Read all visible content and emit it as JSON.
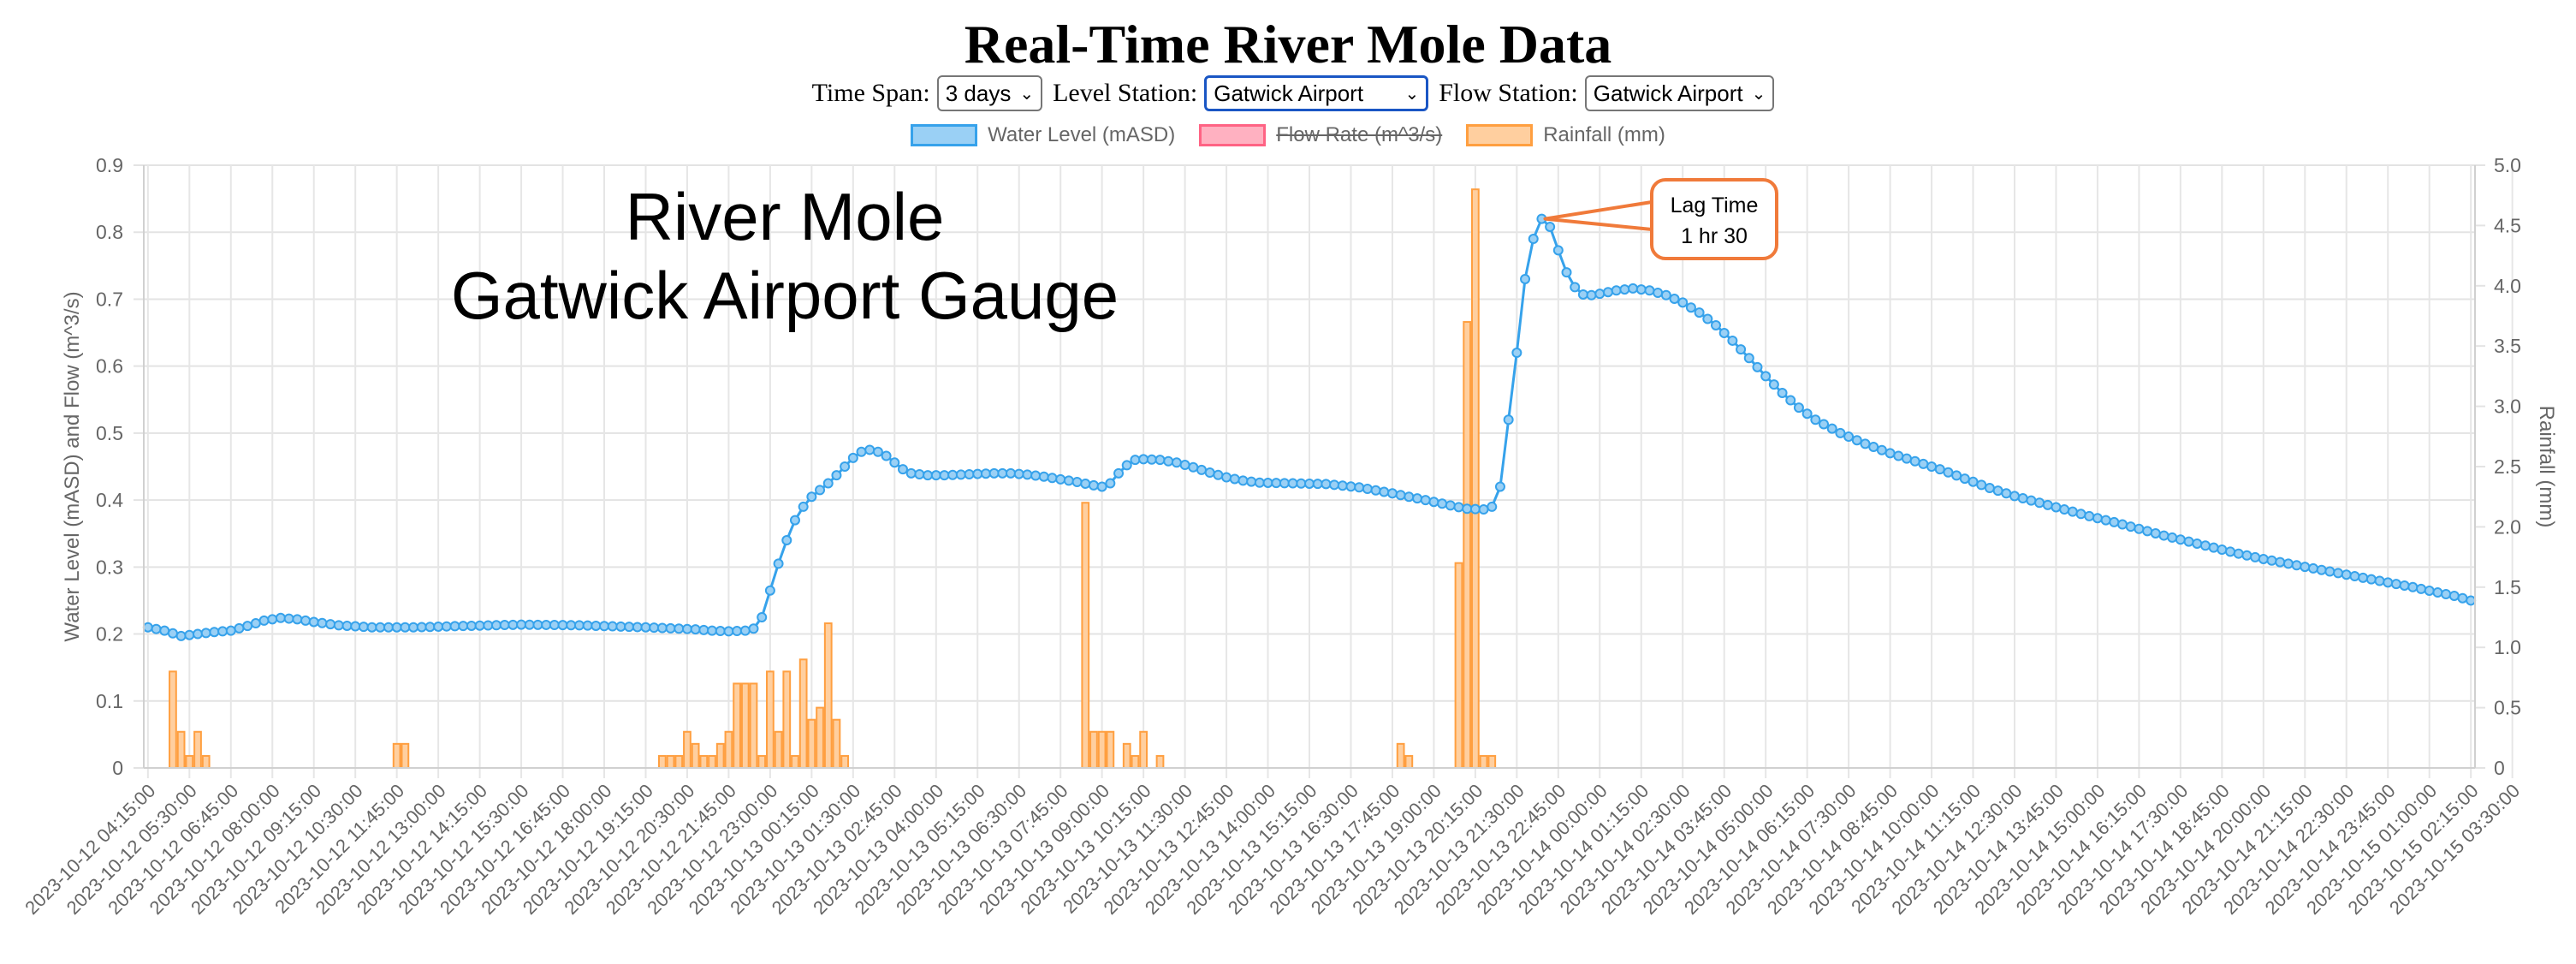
{
  "title": "Real-Time River Mole Data",
  "controls": {
    "time_span_label": "Time Span:",
    "time_span_value": "3 days",
    "level_station_label": "Level Station:",
    "level_station_value": "Gatwick Airport",
    "flow_station_label": "Flow Station:",
    "flow_station_value": "Gatwick Airport"
  },
  "colors": {
    "water_level": "#36a2eb",
    "water_level_fill": "#9ad0f5",
    "flow_rate": "#ff6384",
    "flow_rate_fill": "#ffb1c1",
    "rainfall": "#ff9f40",
    "rainfall_fill": "#ffcf9f",
    "callout": "#f07a3a"
  },
  "legend": [
    {
      "name": "Water Level (mASD)",
      "series": "water_level",
      "hidden": false
    },
    {
      "name": "Flow Rate (m^3/s)",
      "series": "flow_rate",
      "hidden": true
    },
    {
      "name": "Rainfall (mm)",
      "series": "rainfall",
      "hidden": false
    }
  ],
  "annotations": {
    "overlay_line1": "River Mole",
    "overlay_line2": "Gatwick Airport Gauge",
    "callout_line1": "Lag Time",
    "callout_line2": "1 hr 30"
  },
  "chart_data": {
    "type": "line+bar",
    "interval_minutes": 15,
    "start": "2023-10-12 04:15:00",
    "points": 281,
    "ylabel_left": "Water Level (mASD) and Flow (m^3/s)",
    "ylabel_right": "Rainfall (mm)",
    "ylim_left": [
      0,
      0.9
    ],
    "ylim_right": [
      0,
      5
    ],
    "yticks_left": [
      "0",
      "0.1",
      "0.2",
      "0.3",
      "0.4",
      "0.5",
      "0.6",
      "0.7",
      "0.8",
      "0.9"
    ],
    "yticks_right": [
      "0",
      "0.5",
      "1.0",
      "1.5",
      "2.0",
      "2.5",
      "3.0",
      "3.5",
      "4.0",
      "4.5",
      "5.0"
    ],
    "xtick_every": 5,
    "xticks": [
      "2023-10-12 04:15:00",
      "2023-10-12 05:30:00",
      "2023-10-12 06:45:00",
      "2023-10-12 08:00:00",
      "2023-10-12 09:15:00",
      "2023-10-12 10:30:00",
      "2023-10-12 11:45:00",
      "2023-10-12 13:00:00",
      "2023-10-12 14:15:00",
      "2023-10-12 15:30:00",
      "2023-10-12 16:45:00",
      "2023-10-12 18:00:00",
      "2023-10-12 19:15:00",
      "2023-10-12 20:30:00",
      "2023-10-12 21:45:00",
      "2023-10-12 23:00:00",
      "2023-10-13 00:15:00",
      "2023-10-13 01:30:00",
      "2023-10-13 02:45:00",
      "2023-10-13 04:00:00",
      "2023-10-13 05:15:00",
      "2023-10-13 06:30:00",
      "2023-10-13 07:45:00",
      "2023-10-13 09:00:00",
      "2023-10-13 10:15:00",
      "2023-10-13 11:30:00",
      "2023-10-13 12:45:00",
      "2023-10-13 14:00:00",
      "2023-10-13 15:15:00",
      "2023-10-13 16:30:00",
      "2023-10-13 17:45:00",
      "2023-10-13 19:00:00",
      "2023-10-13 20:15:00",
      "2023-10-13 21:30:00",
      "2023-10-13 22:45:00",
      "2023-10-14 00:00:00",
      "2023-10-14 01:15:00",
      "2023-10-14 02:30:00",
      "2023-10-14 03:45:00",
      "2023-10-14 05:00:00",
      "2023-10-14 06:15:00",
      "2023-10-14 07:30:00",
      "2023-10-14 08:45:00",
      "2023-10-14 10:00:00",
      "2023-10-14 11:15:00",
      "2023-10-14 12:30:00",
      "2023-10-14 13:45:00",
      "2023-10-14 15:00:00",
      "2023-10-14 16:15:00",
      "2023-10-14 17:30:00",
      "2023-10-14 18:45:00",
      "2023-10-14 20:00:00",
      "2023-10-14 21:15:00",
      "2023-10-14 22:30:00",
      "2023-10-14 23:45:00",
      "2023-10-15 01:00:00",
      "2023-10-15 02:15:00",
      "2023-10-15 03:30:00"
    ],
    "water_level_knots": [
      [
        0,
        0.21
      ],
      [
        2,
        0.205
      ],
      [
        4,
        0.197
      ],
      [
        6,
        0.2
      ],
      [
        8,
        0.203
      ],
      [
        10,
        0.205
      ],
      [
        12,
        0.212
      ],
      [
        14,
        0.22
      ],
      [
        16,
        0.224
      ],
      [
        18,
        0.222
      ],
      [
        20,
        0.218
      ],
      [
        23,
        0.213
      ],
      [
        27,
        0.21
      ],
      [
        32,
        0.21
      ],
      [
        38,
        0.212
      ],
      [
        45,
        0.214
      ],
      [
        52,
        0.213
      ],
      [
        60,
        0.21
      ],
      [
        66,
        0.207
      ],
      [
        68,
        0.205
      ],
      [
        70,
        0.204
      ],
      [
        72,
        0.205
      ],
      [
        73,
        0.208
      ],
      [
        74,
        0.225
      ],
      [
        75,
        0.265
      ],
      [
        76,
        0.305
      ],
      [
        77,
        0.34
      ],
      [
        78,
        0.37
      ],
      [
        79,
        0.39
      ],
      [
        80,
        0.405
      ],
      [
        81,
        0.415
      ],
      [
        82,
        0.425
      ],
      [
        83,
        0.437
      ],
      [
        84,
        0.45
      ],
      [
        85,
        0.463
      ],
      [
        86,
        0.472
      ],
      [
        87,
        0.475
      ],
      [
        88,
        0.472
      ],
      [
        89,
        0.466
      ],
      [
        90,
        0.456
      ],
      [
        91,
        0.446
      ],
      [
        92,
        0.44
      ],
      [
        94,
        0.437
      ],
      [
        96,
        0.437
      ],
      [
        98,
        0.438
      ],
      [
        100,
        0.439
      ],
      [
        102,
        0.44
      ],
      [
        104,
        0.44
      ],
      [
        106,
        0.438
      ],
      [
        108,
        0.435
      ],
      [
        110,
        0.431
      ],
      [
        112,
        0.427
      ],
      [
        114,
        0.422
      ],
      [
        115,
        0.42
      ],
      [
        116,
        0.425
      ],
      [
        117,
        0.44
      ],
      [
        118,
        0.452
      ],
      [
        119,
        0.46
      ],
      [
        120,
        0.461
      ],
      [
        122,
        0.46
      ],
      [
        124,
        0.456
      ],
      [
        126,
        0.449
      ],
      [
        128,
        0.441
      ],
      [
        130,
        0.434
      ],
      [
        132,
        0.429
      ],
      [
        134,
        0.426
      ],
      [
        138,
        0.425
      ],
      [
        142,
        0.424
      ],
      [
        146,
        0.419
      ],
      [
        150,
        0.41
      ],
      [
        154,
        0.4
      ],
      [
        157,
        0.392
      ],
      [
        159,
        0.387
      ],
      [
        161,
        0.386
      ],
      [
        162,
        0.39
      ],
      [
        163,
        0.42
      ],
      [
        164,
        0.52
      ],
      [
        165,
        0.62
      ],
      [
        166,
        0.73
      ],
      [
        167,
        0.79
      ],
      [
        168,
        0.82
      ],
      [
        169,
        0.808
      ],
      [
        170,
        0.773
      ],
      [
        171,
        0.74
      ],
      [
        172,
        0.718
      ],
      [
        173,
        0.707
      ],
      [
        174,
        0.706
      ],
      [
        175,
        0.708
      ],
      [
        177,
        0.713
      ],
      [
        179,
        0.716
      ],
      [
        181,
        0.713
      ],
      [
        183,
        0.706
      ],
      [
        185,
        0.695
      ],
      [
        187,
        0.68
      ],
      [
        189,
        0.661
      ],
      [
        191,
        0.638
      ],
      [
        193,
        0.612
      ],
      [
        195,
        0.585
      ],
      [
        197,
        0.56
      ],
      [
        199,
        0.538
      ],
      [
        201,
        0.52
      ],
      [
        204,
        0.5
      ],
      [
        207,
        0.484
      ],
      [
        210,
        0.47
      ],
      [
        213,
        0.458
      ],
      [
        216,
        0.446
      ],
      [
        219,
        0.432
      ],
      [
        222,
        0.418
      ],
      [
        225,
        0.406
      ],
      [
        228,
        0.396
      ],
      [
        231,
        0.386
      ],
      [
        234,
        0.376
      ],
      [
        237,
        0.367
      ],
      [
        240,
        0.357
      ],
      [
        243,
        0.347
      ],
      [
        246,
        0.338
      ],
      [
        249,
        0.329
      ],
      [
        252,
        0.32
      ],
      [
        255,
        0.312
      ],
      [
        258,
        0.305
      ],
      [
        261,
        0.298
      ],
      [
        264,
        0.291
      ],
      [
        267,
        0.284
      ],
      [
        270,
        0.277
      ],
      [
        273,
        0.27
      ],
      [
        276,
        0.262
      ],
      [
        278,
        0.257
      ],
      [
        280,
        0.25
      ]
    ],
    "rainfall_mm": [
      [
        3,
        0.8
      ],
      [
        4,
        0.3
      ],
      [
        5,
        0.1
      ],
      [
        6,
        0.3
      ],
      [
        7,
        0.1
      ],
      [
        30,
        0.2
      ],
      [
        31,
        0.2
      ],
      [
        62,
        0.1
      ],
      [
        63,
        0.1
      ],
      [
        64,
        0.1
      ],
      [
        65,
        0.3
      ],
      [
        66,
        0.2
      ],
      [
        67,
        0.1
      ],
      [
        68,
        0.1
      ],
      [
        69,
        0.2
      ],
      [
        70,
        0.3
      ],
      [
        71,
        0.7
      ],
      [
        72,
        0.7
      ],
      [
        73,
        0.7
      ],
      [
        74,
        0.1
      ],
      [
        75,
        0.8
      ],
      [
        76,
        0.3
      ],
      [
        77,
        0.8
      ],
      [
        78,
        0.1
      ],
      [
        79,
        0.9
      ],
      [
        80,
        0.4
      ],
      [
        81,
        0.5
      ],
      [
        82,
        1.2
      ],
      [
        83,
        0.4
      ],
      [
        84,
        0.1
      ],
      [
        113,
        2.2
      ],
      [
        114,
        0.3
      ],
      [
        115,
        0.3
      ],
      [
        116,
        0.3
      ],
      [
        118,
        0.2
      ],
      [
        119,
        0.1
      ],
      [
        120,
        0.3
      ],
      [
        122,
        0.1
      ],
      [
        151,
        0.2
      ],
      [
        152,
        0.1
      ],
      [
        158,
        1.7
      ],
      [
        159,
        3.7
      ],
      [
        160,
        4.8
      ],
      [
        161,
        0.1
      ],
      [
        162,
        0.1
      ]
    ]
  }
}
